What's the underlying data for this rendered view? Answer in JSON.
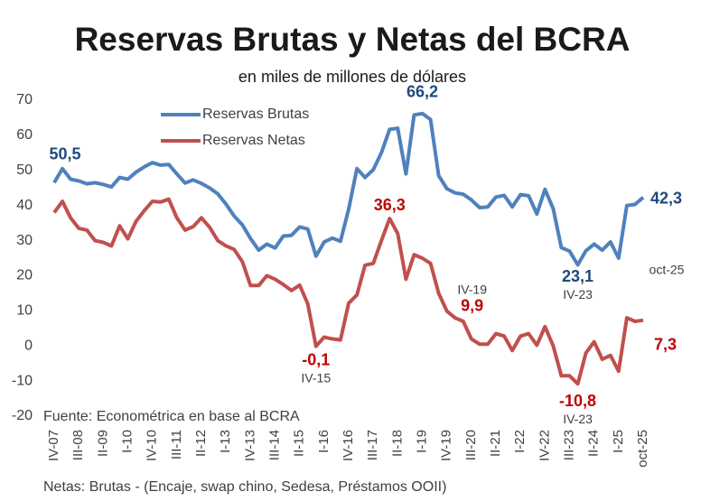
{
  "chart_data": {
    "type": "line",
    "title": "Reservas Brutas y Netas del BCRA",
    "subtitle": "en miles de millones de dólares",
    "categories": [
      "IV-07",
      null,
      null,
      "III-08",
      null,
      null,
      "II-09",
      null,
      null,
      "I-10",
      null,
      null,
      "IV-10",
      null,
      null,
      "III-11",
      null,
      null,
      "II-12",
      null,
      null,
      "I-13",
      null,
      null,
      "IV-13",
      null,
      null,
      "III-14",
      null,
      null,
      "II-15",
      null,
      null,
      "I-16",
      null,
      null,
      "IV-16",
      null,
      null,
      "III-17",
      null,
      null,
      "II-18",
      null,
      null,
      "I-19",
      null,
      null,
      "IV-19",
      null,
      null,
      "III-20",
      null,
      null,
      "II-21",
      null,
      null,
      "I-22",
      null,
      null,
      "IV-22",
      null,
      null,
      "III-23",
      null,
      null,
      "II-24",
      null,
      null,
      "I-25",
      null,
      null,
      "oct-25"
    ],
    "series": [
      {
        "name": "Reservas Brutas",
        "color": "#4f81bd",
        "label_color": "#1f497d",
        "values": [
          46.5,
          50.5,
          47.5,
          47,
          46.2,
          46.5,
          46,
          45.3,
          48,
          47.5,
          49.5,
          51,
          52.2,
          51.5,
          51.7,
          49,
          46.4,
          47.3,
          46.3,
          45,
          43.3,
          40.4,
          37,
          34.5,
          30.6,
          27.3,
          29,
          27.9,
          31.3,
          31.5,
          33.9,
          33.3,
          25.6,
          29.6,
          30.7,
          29.8,
          39,
          50.5,
          48,
          50.2,
          55,
          61.7,
          62,
          49,
          65.8,
          66.2,
          64.5,
          48.5,
          44.8,
          43.6,
          43.2,
          41.6,
          39.4,
          39.6,
          42.4,
          42.9,
          39.6,
          43.1,
          42.8,
          37.6,
          44.6,
          39.1,
          28,
          27,
          23.1,
          27.1,
          29,
          27.3,
          29.6,
          25,
          40,
          40.3,
          42.3
        ],
        "value_labels": [
          null,
          "50,5",
          null,
          null,
          null,
          null,
          null,
          null,
          null,
          null,
          null,
          null,
          null,
          null,
          null,
          null,
          null,
          null,
          null,
          null,
          null,
          null,
          null,
          null,
          null,
          null,
          null,
          null,
          null,
          null,
          null,
          null,
          null,
          null,
          null,
          null,
          null,
          null,
          null,
          null,
          null,
          null,
          null,
          null,
          null,
          "66,2",
          null,
          null,
          null,
          null,
          null,
          null,
          null,
          null,
          null,
          null,
          null,
          null,
          null,
          null,
          null,
          null,
          null,
          null,
          "23,1",
          null,
          null,
          null,
          null,
          null,
          null,
          null,
          "42,3"
        ],
        "notes": [
          null,
          null,
          null,
          null,
          null,
          null,
          null,
          null,
          null,
          null,
          null,
          null,
          null,
          null,
          null,
          null,
          null,
          null,
          null,
          null,
          null,
          null,
          null,
          null,
          null,
          null,
          null,
          null,
          null,
          null,
          null,
          null,
          null,
          null,
          null,
          null,
          null,
          null,
          null,
          null,
          null,
          null,
          null,
          null,
          null,
          null,
          null,
          null,
          null,
          null,
          null,
          null,
          null,
          null,
          null,
          null,
          null,
          null,
          null,
          null,
          null,
          null,
          null,
          null,
          "IV-23",
          null,
          null,
          null,
          null,
          null,
          null,
          null,
          "oct-25"
        ]
      },
      {
        "name": "Reservas Netas",
        "color": "#c0504d",
        "label_color": "#c00000",
        "values": [
          38,
          41.2,
          36.5,
          33.5,
          33,
          30,
          29.5,
          28.5,
          34.2,
          30.5,
          35.5,
          38.5,
          41.2,
          41,
          41.8,
          36.5,
          33,
          34,
          36.5,
          33.8,
          30,
          28.5,
          27.5,
          24,
          17.2,
          17.2,
          20,
          19,
          17.5,
          15.8,
          17.3,
          12,
          -0.1,
          2.5,
          2,
          1.7,
          12.2,
          14.5,
          23,
          23.5,
          30,
          36.3,
          32,
          19,
          26,
          25,
          23.5,
          15,
          9.9,
          8,
          7,
          2,
          0.5,
          0.5,
          3.5,
          2.8,
          -1.3,
          2.8,
          3.5,
          0.2,
          5.5,
          0,
          -8.5,
          -8.5,
          -10.8,
          -2,
          1.2,
          -3.8,
          -2.7,
          -7.2,
          8,
          7,
          7.3
        ],
        "value_labels": [
          null,
          null,
          null,
          null,
          null,
          null,
          null,
          null,
          null,
          null,
          null,
          null,
          null,
          null,
          null,
          null,
          null,
          null,
          null,
          null,
          null,
          null,
          null,
          null,
          null,
          null,
          null,
          null,
          null,
          null,
          null,
          null,
          "-0,1",
          null,
          null,
          null,
          null,
          null,
          null,
          null,
          null,
          "36,3",
          null,
          null,
          null,
          null,
          null,
          null,
          "9,9",
          null,
          null,
          null,
          null,
          null,
          null,
          null,
          null,
          null,
          null,
          null,
          null,
          null,
          null,
          null,
          "-10,8",
          null,
          null,
          null,
          null,
          null,
          null,
          null,
          "7,3"
        ],
        "notes": [
          null,
          null,
          null,
          null,
          null,
          null,
          null,
          null,
          null,
          null,
          null,
          null,
          null,
          null,
          null,
          null,
          null,
          null,
          null,
          null,
          null,
          null,
          null,
          null,
          null,
          null,
          null,
          null,
          null,
          null,
          null,
          null,
          "IV-15",
          null,
          null,
          null,
          null,
          null,
          null,
          null,
          null,
          null,
          null,
          null,
          null,
          null,
          null,
          null,
          "IV-19",
          null,
          null,
          null,
          null,
          null,
          null,
          null,
          null,
          null,
          null,
          null,
          null,
          null,
          null,
          null,
          "IV-23",
          null,
          null,
          null,
          null,
          null,
          null,
          null,
          null
        ]
      }
    ],
    "ylim": [
      -20,
      70
    ],
    "yticks": [
      -20,
      -10,
      0,
      10,
      20,
      30,
      40,
      50,
      60,
      70
    ],
    "grid": false,
    "legend": "upper-left",
    "source": "Fuente:  Econométrica en base al BCRA",
    "footnote": "Netas: Brutas - (Encaje, swap chino, Sedesa, Préstamos OOII)"
  }
}
